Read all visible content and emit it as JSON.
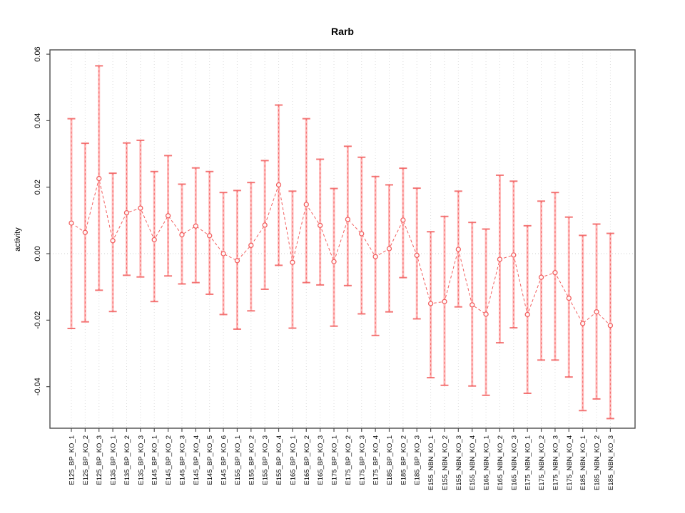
{
  "window": {
    "title": "Rarb"
  },
  "chart_data": {
    "type": "scatter",
    "title": "Rarb",
    "xlabel": "",
    "ylabel": "activity",
    "ylim": [
      -0.0525,
      0.0613
    ],
    "yticks": [
      -0.04,
      -0.02,
      0.0,
      0.02,
      0.04,
      0.06
    ],
    "ytick_labels": [
      "-0.04",
      "-0.02",
      "0.00",
      "0.02",
      "0.04",
      "0.06"
    ],
    "grid": "vertical dotted gridlines at each category; dotted horizontal line at y=0",
    "legend": "none",
    "marker": "open-circle with dashed connecting line and error bars",
    "categories": [
      "E125_BP_KO_1",
      "E125_BP_KO_2",
      "E125_BP_KO_3",
      "E135_BP_KO_1",
      "E135_BP_KO_2",
      "E135_BP_KO_3",
      "E145_BP_KO_1",
      "E145_BP_KO_2",
      "E145_BP_KO_3",
      "E145_BP_KO_4",
      "E145_BP_KO_5",
      "E145_BP_KO_6",
      "E155_BP_KO_1",
      "E155_BP_KO_2",
      "E155_BP_KO_3",
      "E155_BP_KO_4",
      "E165_BP_KO_1",
      "E165_BP_KO_2",
      "E165_BP_KO_3",
      "E175_BP_KO_1",
      "E175_BP_KO_2",
      "E175_BP_KO_3",
      "E175_BP_KO_4",
      "E185_BP_KO_1",
      "E185_BP_KO_2",
      "E185_BP_KO_3",
      "E155_NBN_KO_1",
      "E155_NBN_KO_2",
      "E155_NBN_KO_3",
      "E155_NBN_KO_4",
      "E165_NBN_KO_1",
      "E165_NBN_KO_2",
      "E165_NBN_KO_3",
      "E175_NBN_KO_1",
      "E175_NBN_KO_2",
      "E175_NBN_KO_3",
      "E175_NBN_KO_4",
      "E185_NBN_KO_1",
      "E185_NBN_KO_2",
      "E185_NBN_KO_3"
    ],
    "values": [
      0.0092,
      0.0064,
      0.0226,
      0.0039,
      0.0123,
      0.0137,
      0.0042,
      0.0114,
      0.0057,
      0.0083,
      0.0054,
      0.0,
      -0.0021,
      0.0025,
      0.0086,
      0.0207,
      -0.0026,
      0.0148,
      0.0085,
      -0.0024,
      0.0103,
      0.006,
      -0.0009,
      0.0015,
      0.0101,
      -0.0005,
      -0.015,
      -0.0144,
      0.0013,
      -0.0154,
      -0.0182,
      -0.0017,
      -0.0004,
      -0.0183,
      -0.0071,
      -0.0057,
      -0.0134,
      -0.021,
      -0.0175,
      -0.0216
    ],
    "error_high": [
      0.0406,
      0.0332,
      0.0565,
      0.0242,
      0.0333,
      0.0341,
      0.0247,
      0.0295,
      0.0209,
      0.0258,
      0.0247,
      0.0184,
      0.019,
      0.0214,
      0.028,
      0.0447,
      0.0188,
      0.0406,
      0.0284,
      0.0196,
      0.0323,
      0.029,
      0.0232,
      0.0207,
      0.0257,
      0.0197,
      0.0066,
      0.0112,
      0.0188,
      0.0094,
      0.0074,
      0.0236,
      0.0218,
      0.0084,
      0.0158,
      0.0184,
      0.011,
      0.0055,
      0.0089,
      0.0061
    ],
    "error_low": [
      -0.0225,
      -0.0205,
      -0.011,
      -0.0174,
      -0.0065,
      -0.007,
      -0.0144,
      -0.0067,
      -0.0091,
      -0.0087,
      -0.0122,
      -0.0183,
      -0.0227,
      -0.0172,
      -0.0107,
      -0.0035,
      -0.0224,
      -0.0087,
      -0.0094,
      -0.0218,
      -0.0096,
      -0.0181,
      -0.0246,
      -0.0175,
      -0.0072,
      -0.0196,
      -0.0373,
      -0.0396,
      -0.016,
      -0.0398,
      -0.0426,
      -0.0268,
      -0.0223,
      -0.042,
      -0.032,
      -0.032,
      -0.0371,
      -0.0472,
      -0.0437,
      -0.0496
    ],
    "colors": {
      "point": "#f25f5f",
      "stem_pale": "#ffadad",
      "grid": "#dcdcdc",
      "zero_line": "#cfcfcf",
      "box": "#4d4d4d",
      "text": "#000000"
    }
  }
}
